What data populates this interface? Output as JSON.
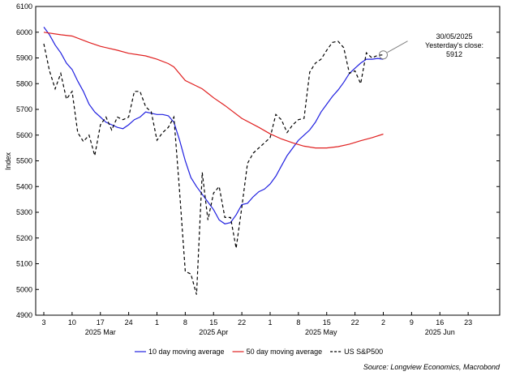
{
  "chart_data": {
    "type": "line",
    "title": "",
    "ylabel": "Index",
    "xlabel": "",
    "ylim": [
      4900,
      6100
    ],
    "yticks": [
      4900,
      5000,
      5100,
      5200,
      5300,
      5400,
      5500,
      5600,
      5700,
      5800,
      5900,
      6000,
      6100
    ],
    "x_unit": "trading-day index from 3 Mar 2025 (0) to 23 Jun 2025 (80)",
    "xlim": [
      0,
      80
    ],
    "xticks": [
      {
        "x": 0,
        "label": "3"
      },
      {
        "x": 5,
        "label": "10"
      },
      {
        "x": 10,
        "label": "17"
      },
      {
        "x": 15,
        "label": "24"
      },
      {
        "x": 20,
        "label": "1"
      },
      {
        "x": 25,
        "label": "8"
      },
      {
        "x": 30,
        "label": "15"
      },
      {
        "x": 35,
        "label": "22"
      },
      {
        "x": 40,
        "label": "1"
      },
      {
        "x": 45,
        "label": "8"
      },
      {
        "x": 50,
        "label": "15"
      },
      {
        "x": 55,
        "label": "22"
      },
      {
        "x": 60,
        "label": "2"
      },
      {
        "x": 65,
        "label": "9"
      },
      {
        "x": 70,
        "label": "16"
      },
      {
        "x": 75,
        "label": "23"
      }
    ],
    "month_labels": [
      {
        "x": 10,
        "label": "2025 Mar"
      },
      {
        "x": 30,
        "label": "2025 Apr"
      },
      {
        "x": 49,
        "label": "2025 May"
      },
      {
        "x": 70,
        "label": "2025 Jun"
      }
    ],
    "series": [
      {
        "name": "10 day moving average",
        "color": "#2020e0",
        "style": "solid",
        "x": [
          0,
          1,
          2,
          3,
          4,
          5,
          6,
          7,
          8,
          9,
          10,
          11,
          12,
          13,
          14,
          15,
          16,
          17,
          18,
          19,
          20,
          21,
          22,
          23,
          24,
          25,
          26,
          27,
          28,
          29,
          30,
          31,
          32,
          33,
          34,
          35,
          36,
          37,
          38,
          39,
          40,
          41,
          42,
          43,
          44,
          45,
          46,
          47,
          48,
          49,
          50,
          51,
          52,
          53,
          54,
          55,
          56,
          57,
          58,
          59,
          60
        ],
        "values": [
          6020,
          5990,
          5950,
          5920,
          5880,
          5855,
          5810,
          5770,
          5720,
          5690,
          5670,
          5650,
          5640,
          5630,
          5625,
          5640,
          5660,
          5670,
          5690,
          5685,
          5680,
          5680,
          5675,
          5650,
          5580,
          5500,
          5435,
          5400,
          5370,
          5340,
          5310,
          5270,
          5255,
          5260,
          5290,
          5330,
          5335,
          5360,
          5380,
          5390,
          5410,
          5440,
          5480,
          5520,
          5550,
          5580,
          5600,
          5620,
          5650,
          5690,
          5720,
          5750,
          5775,
          5805,
          5840,
          5860,
          5880,
          5895,
          5895,
          5898,
          5895
        ]
      },
      {
        "name": "50 day moving average",
        "color": "#e02020",
        "style": "solid",
        "x": [
          0,
          3,
          5,
          8,
          10,
          13,
          15,
          18,
          20,
          22,
          23,
          25,
          28,
          30,
          32,
          35,
          38,
          40,
          42,
          44,
          46,
          48,
          50,
          52,
          54,
          56,
          58,
          60
        ],
        "values": [
          6000,
          5990,
          5985,
          5960,
          5945,
          5930,
          5918,
          5908,
          5895,
          5878,
          5865,
          5812,
          5780,
          5745,
          5715,
          5665,
          5630,
          5605,
          5585,
          5570,
          5557,
          5550,
          5550,
          5555,
          5565,
          5578,
          5590,
          5604
        ]
      },
      {
        "name": "US S&P500",
        "color": "#000000",
        "style": "dashed",
        "x": [
          0,
          1,
          2,
          3,
          4,
          5,
          6,
          7,
          8,
          9,
          10,
          11,
          12,
          13,
          14,
          15,
          16,
          17,
          18,
          19,
          20,
          21,
          22,
          23,
          24,
          25,
          26,
          27,
          28,
          29,
          30,
          31,
          32,
          33,
          34,
          35,
          36,
          37,
          38,
          39,
          40,
          41,
          42,
          43,
          44,
          45,
          46,
          47,
          48,
          49,
          50,
          51,
          52,
          53,
          54,
          55,
          56,
          57,
          58,
          59,
          60
        ],
        "values": [
          5955,
          5850,
          5780,
          5840,
          5740,
          5770,
          5610,
          5575,
          5600,
          5520,
          5640,
          5670,
          5620,
          5670,
          5660,
          5670,
          5770,
          5770,
          5710,
          5690,
          5580,
          5610,
          5630,
          5670,
          5380,
          5070,
          5060,
          4980,
          5455,
          5270,
          5375,
          5400,
          5280,
          5280,
          5160,
          5320,
          5490,
          5530,
          5550,
          5570,
          5590,
          5680,
          5660,
          5610,
          5640,
          5660,
          5665,
          5845,
          5880,
          5895,
          5930,
          5960,
          5965,
          5940,
          5840,
          5850,
          5800,
          5920,
          5900,
          5910,
          5912
        ]
      }
    ],
    "annotation": {
      "x": 60,
      "y": 5912,
      "lines": [
        "30/05/2025",
        "Yesterday's close:",
        "5912"
      ]
    },
    "source": "Source: Longview Economics, Macrobond"
  }
}
